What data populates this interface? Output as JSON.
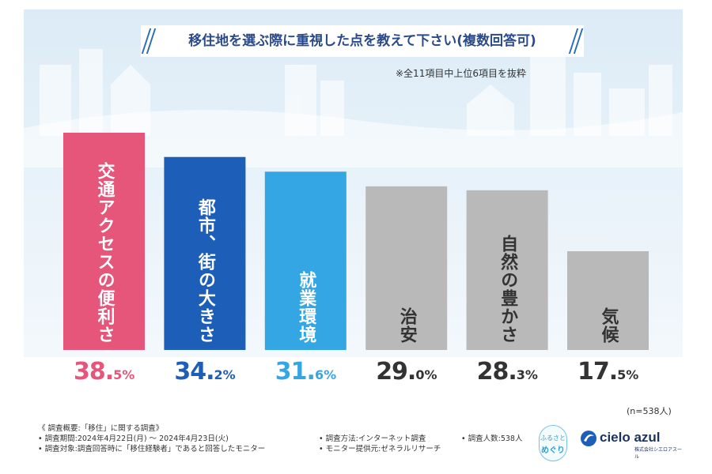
{
  "title": "移住地を選ぶ際に重視した点を教えて下さい(複数回答可)",
  "note": "※全11項目中上位6項目を抜粋",
  "sample": "(n=538人)",
  "chart_data": {
    "type": "bar",
    "unit": "%",
    "categories": [
      "交通アクセスの便利さ",
      "都市、街の大きさ",
      "就業環境",
      "治安",
      "自然の豊かさ",
      "気候"
    ],
    "values": [
      38.5,
      34.2,
      31.6,
      29.0,
      28.3,
      17.5
    ],
    "ylim": [
      0,
      42
    ],
    "bar_colors": [
      "#e6557a",
      "#1d5fb8",
      "#34a6e4",
      "#b9b9b9",
      "#b9b9b9",
      "#b9b9b9"
    ],
    "label_colors": [
      "#ffffff",
      "#ffffff",
      "#ffffff",
      "#333333",
      "#333333",
      "#333333"
    ],
    "value_colors": [
      "#e6557a",
      "#1d5fb8",
      "#34a6e4",
      "#333333",
      "#333333",
      "#333333"
    ],
    "value_text": [
      [
        "38.",
        "5%"
      ],
      [
        "34.",
        "2%"
      ],
      [
        "31.",
        "6%"
      ],
      [
        "29.",
        "0%"
      ],
      [
        "28.",
        "3%"
      ],
      [
        "17.",
        "5%"
      ]
    ]
  },
  "footer": {
    "line1": "《 調査概要:「移住」に関する調査》",
    "line2": "• 調査期間:2024年4月22日(月) ～ 2024年4月23日(火)",
    "line3": "• 調査対象:調査回答時に「移住経験者」であると回答したモニター",
    "method": "• 調査方法:インターネット調査",
    "provider": "• モニター提供元:ゼネラルリサーチ",
    "count": "• 調査人数:538人"
  },
  "logos": {
    "furusato_line1": "ふるさと",
    "furusato_line2": "めぐり",
    "company": "cielo azul",
    "company_sub": "株式会社シエロアスール"
  }
}
